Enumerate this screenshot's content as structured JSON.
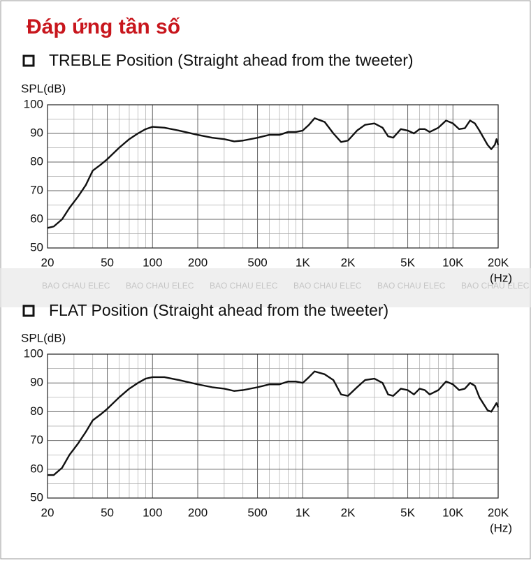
{
  "page_title": "Đáp ứng tần số",
  "watermark": "BAO CHAU ELEC",
  "chart_data": [
    {
      "type": "line",
      "title": "TREBLE Position (Straight ahead from the tweeter)",
      "y_label": "SPL(dB)",
      "x_label": "(Hz)",
      "x_scale": "log",
      "grid": true,
      "xlim": [
        20,
        20000
      ],
      "ylim": [
        50,
        100
      ],
      "xticks": [
        20,
        50,
        100,
        200,
        500,
        {
          "value": 1000,
          "label": "1K"
        },
        {
          "value": 2000,
          "label": "2K"
        },
        {
          "value": 5000,
          "label": "5K"
        },
        {
          "value": 10000,
          "label": "10K"
        },
        {
          "value": 20000,
          "label": "20K"
        }
      ],
      "x_minor_ticks": [
        30,
        40,
        60,
        70,
        80,
        90,
        300,
        400,
        600,
        700,
        800,
        900,
        3000,
        4000,
        6000,
        7000,
        8000,
        9000
      ],
      "yticks": [
        50,
        60,
        70,
        80,
        90,
        100
      ],
      "y_minor_ticks": [
        55,
        65,
        75,
        85,
        95
      ],
      "x": [
        20,
        22,
        25,
        28,
        32,
        36,
        40,
        45,
        50,
        60,
        70,
        80,
        90,
        100,
        120,
        150,
        200,
        250,
        300,
        350,
        400,
        500,
        600,
        700,
        800,
        900,
        1000,
        1100,
        1200,
        1400,
        1600,
        1800,
        2000,
        2300,
        2600,
        3000,
        3400,
        3700,
        4000,
        4500,
        5000,
        5500,
        6000,
        6500,
        7000,
        8000,
        9000,
        10000,
        11000,
        12000,
        13000,
        14000,
        15000,
        17000,
        18000,
        19000,
        19500,
        20000
      ],
      "series": [
        {
          "color": "#111111",
          "values": [
            57,
            57.5,
            60,
            64,
            68,
            72,
            77,
            79,
            81,
            85,
            88,
            90,
            91.5,
            92.3,
            92,
            91,
            89.5,
            88.5,
            88,
            87.2,
            87.5,
            88.5,
            89.5,
            89.5,
            90.5,
            90.5,
            91,
            93,
            95.3,
            94,
            90,
            87,
            87.5,
            91,
            93,
            93.5,
            92,
            89,
            88.5,
            91.5,
            91,
            90,
            91.5,
            91.5,
            90.5,
            92,
            94.5,
            93.5,
            91.5,
            91.8,
            94.5,
            93.5,
            91,
            86,
            84.5,
            86,
            88,
            86
          ]
        }
      ]
    },
    {
      "type": "line",
      "title": "FLAT Position (Straight ahead from the tweeter)",
      "y_label": "SPL(dB)",
      "x_label": "(Hz)",
      "x_scale": "log",
      "grid": true,
      "xlim": [
        20,
        20000
      ],
      "ylim": [
        50,
        100
      ],
      "xticks": [
        20,
        50,
        100,
        200,
        500,
        {
          "value": 1000,
          "label": "1K"
        },
        {
          "value": 2000,
          "label": "2K"
        },
        {
          "value": 5000,
          "label": "5K"
        },
        {
          "value": 10000,
          "label": "10K"
        },
        {
          "value": 20000,
          "label": "20K"
        }
      ],
      "x_minor_ticks": [
        30,
        40,
        60,
        70,
        80,
        90,
        300,
        400,
        600,
        700,
        800,
        900,
        3000,
        4000,
        6000,
        7000,
        8000,
        9000
      ],
      "yticks": [
        50,
        60,
        70,
        80,
        90,
        100
      ],
      "y_minor_ticks": [
        55,
        65,
        75,
        85,
        95
      ],
      "x": [
        20,
        22,
        25,
        28,
        32,
        36,
        40,
        45,
        50,
        60,
        70,
        80,
        90,
        100,
        120,
        150,
        200,
        250,
        300,
        350,
        400,
        500,
        600,
        700,
        800,
        900,
        1000,
        1100,
        1200,
        1400,
        1600,
        1800,
        2000,
        2300,
        2600,
        3000,
        3400,
        3700,
        4000,
        4500,
        5000,
        5500,
        6000,
        6500,
        7000,
        8000,
        9000,
        10000,
        11000,
        12000,
        13000,
        14000,
        15000,
        17000,
        18000,
        19000,
        19500,
        20000
      ],
      "series": [
        {
          "color": "#111111",
          "values": [
            58,
            58,
            60.5,
            65,
            69,
            73,
            77,
            79,
            81,
            85,
            88,
            90,
            91.5,
            92,
            92,
            91,
            89.5,
            88.5,
            88,
            87.2,
            87.5,
            88.5,
            89.5,
            89.5,
            90.5,
            90.5,
            90,
            92,
            94,
            93,
            91,
            86,
            85.5,
            88.5,
            91,
            91.5,
            90,
            86,
            85.5,
            88,
            87.5,
            86,
            88,
            87.5,
            86,
            87.5,
            90.5,
            89.5,
            87.5,
            88,
            90,
            89,
            85,
            80.5,
            80,
            82,
            83,
            81.5
          ]
        }
      ]
    }
  ]
}
